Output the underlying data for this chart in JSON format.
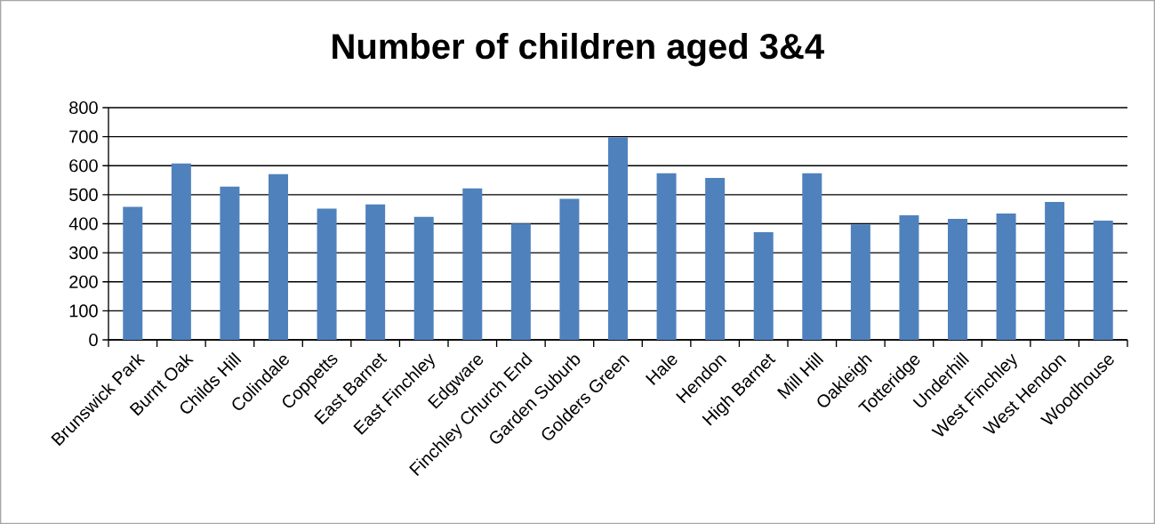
{
  "chart_data": {
    "type": "bar",
    "title": "Number of children aged 3&4",
    "categories": [
      "Brunswick Park",
      "Burnt Oak",
      "Childs Hill",
      "Colindale",
      "Coppetts",
      "East Barnet",
      "East Finchley",
      "Edgware",
      "Finchley Church End",
      "Garden Suburb",
      "Golders Green",
      "Hale",
      "Hendon",
      "High Barnet",
      "Mill Hill",
      "Oakleigh",
      "Totteridge",
      "Underhill",
      "West Finchley",
      "West Hendon",
      "Woodhouse"
    ],
    "values": [
      458,
      608,
      528,
      571,
      452,
      467,
      424,
      522,
      401,
      486,
      698,
      574,
      558,
      371,
      574,
      398,
      429,
      417,
      435,
      475,
      411
    ],
    "color": "#4f81bd",
    "ylim": [
      0,
      800
    ],
    "yticks": [
      0,
      100,
      200,
      300,
      400,
      500,
      600,
      700,
      800
    ],
    "grid": "y"
  }
}
